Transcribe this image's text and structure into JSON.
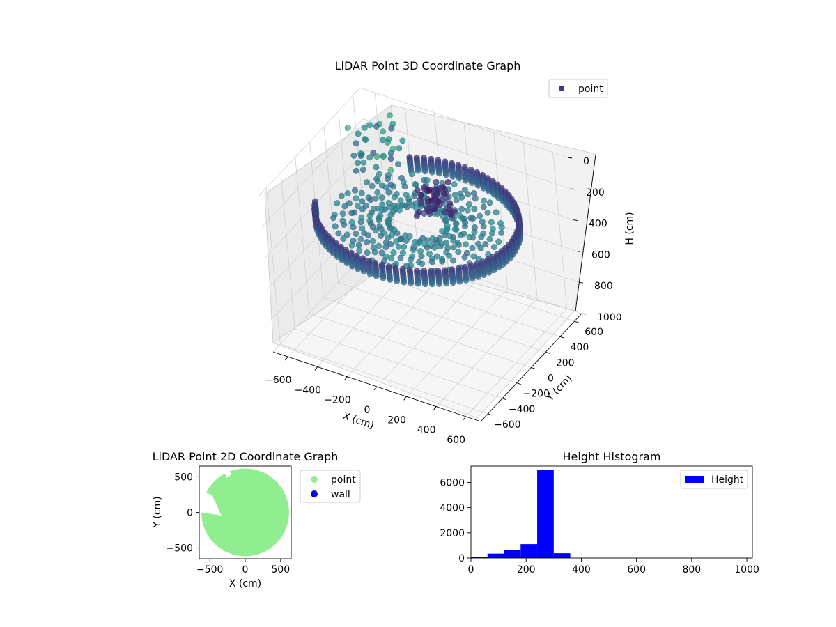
{
  "chart_data": [
    {
      "type": "scatter3d",
      "title": "LiDAR Point 3D Coordinate Graph",
      "xlabel": "X (cm)",
      "ylabel": "Y (cm)",
      "zlabel": "H (cm)",
      "xlim": [
        -700,
        700
      ],
      "ylim": [
        -700,
        700
      ],
      "zlim": [
        0,
        1000
      ],
      "xticks": [
        "−600",
        "−400",
        "−200",
        "0",
        "200",
        "400",
        "600"
      ],
      "yticks": [
        "−600",
        "−400",
        "−200",
        "0",
        "200",
        "400",
        "600"
      ],
      "zticks": [
        "0",
        "200",
        "400",
        "600",
        "800",
        "1000"
      ],
      "zaxis_inverted": true,
      "colormap": "viridis",
      "legend": [
        {
          "label": "point",
          "color": "#3b3b8a"
        }
      ],
      "description_series": {
        "outer_wall_radius_cm": 620,
        "wall_height_range_cm": [
          240,
          330
        ],
        "floor_height_cm": 300
      }
    },
    {
      "type": "scatter",
      "title": "LiDAR Point 2D Coordinate Graph",
      "xlabel": "X (cm)",
      "ylabel": "Y (cm)",
      "xlim": [
        -650,
        650
      ],
      "ylim": [
        -650,
        650
      ],
      "xticks": [
        "−500",
        "0",
        "500"
      ],
      "yticks": [
        "500",
        "0",
        "−500"
      ],
      "series": [
        {
          "name": "point",
          "color": "#90ee90",
          "shape": "disc",
          "radius_cm": 620
        },
        {
          "name": "wall",
          "color": "#0000ff",
          "values": []
        }
      ]
    },
    {
      "type": "histogram",
      "title": "Height Histogram",
      "legend": [
        {
          "label": "Height",
          "color": "#0000ff"
        }
      ],
      "xlim": [
        0,
        1020
      ],
      "ylim": [
        0,
        7300
      ],
      "xticks": [
        "0",
        "200",
        "400",
        "600",
        "800",
        "1000"
      ],
      "yticks": [
        "0",
        "2000",
        "4000",
        "6000"
      ],
      "bin_edges": [
        0,
        60,
        120,
        180,
        240,
        300,
        360,
        420,
        480,
        540,
        600,
        660,
        720,
        780,
        840,
        900,
        960,
        1020
      ],
      "counts": [
        80,
        350,
        650,
        1100,
        7000,
        380,
        0,
        0,
        0,
        0,
        0,
        0,
        0,
        0,
        0,
        0,
        0
      ],
      "color": "#0000ff"
    }
  ]
}
